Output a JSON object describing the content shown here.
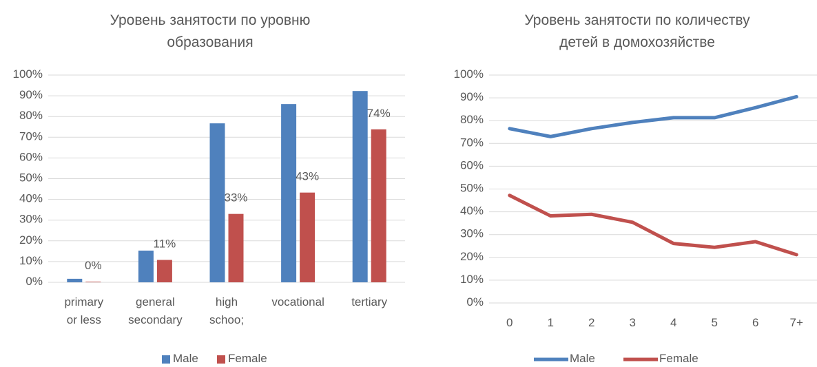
{
  "chart_data": [
    {
      "type": "bar",
      "title": "Уровень занятости по уровню\nобразования",
      "categories": [
        "primary\nor less",
        "general\nsecondary",
        "high\nschoo;",
        "vocational",
        "tertiary"
      ],
      "series": [
        {
          "name": "Male",
          "color": "#4f81bd",
          "values": [
            1.7,
            15.3,
            76.7,
            86,
            92.3
          ]
        },
        {
          "name": "Female",
          "color": "#c0504d",
          "values": [
            0.3,
            10.8,
            33,
            43.3,
            73.8
          ],
          "value_labels": [
            "0%",
            "11%",
            "33%",
            "43%",
            "74%"
          ]
        }
      ],
      "ylim": [
        0,
        100
      ],
      "yticks": [
        {
          "value": 0,
          "label": "0%"
        },
        {
          "value": 10,
          "label": "10%"
        },
        {
          "value": 20,
          "label": "20%"
        },
        {
          "value": 30,
          "label": "30%"
        },
        {
          "value": 40,
          "label": "40%"
        },
        {
          "value": 50,
          "label": "50%"
        },
        {
          "value": 60,
          "label": "60%"
        },
        {
          "value": 70,
          "label": "70%"
        },
        {
          "value": 80,
          "label": "80%"
        },
        {
          "value": 90,
          "label": "90%"
        },
        {
          "value": 100,
          "label": "100%"
        }
      ],
      "grid": true,
      "legend": "bottom"
    },
    {
      "type": "line",
      "title": "Уровень занятости по количеству\nдетей в домохозяйстве",
      "categories": [
        "0",
        "1",
        "2",
        "3",
        "4",
        "5",
        "6",
        "7+"
      ],
      "series": [
        {
          "name": "Male",
          "color": "#4f81bd",
          "values": [
            76.5,
            73,
            76.5,
            79.2,
            81.3,
            81.3,
            85.7,
            90.5
          ]
        },
        {
          "name": "Female",
          "color": "#c0504d",
          "values": [
            47.2,
            38.2,
            38.9,
            35.4,
            26.1,
            24.4,
            26.9,
            21.2
          ]
        }
      ],
      "ylim": [
        0,
        100
      ],
      "yticks": [
        {
          "value": 0,
          "label": "0%"
        },
        {
          "value": 10,
          "label": "10%"
        },
        {
          "value": 20,
          "label": "20%"
        },
        {
          "value": 30,
          "label": "30%"
        },
        {
          "value": 40,
          "label": "40%"
        },
        {
          "value": 50,
          "label": "50%"
        },
        {
          "value": 60,
          "label": "60%"
        },
        {
          "value": 70,
          "label": "70%"
        },
        {
          "value": 80,
          "label": "80%"
        },
        {
          "value": 90,
          "label": "90%"
        },
        {
          "value": 100,
          "label": "100%"
        }
      ],
      "grid": true,
      "legend": "bottom"
    }
  ]
}
